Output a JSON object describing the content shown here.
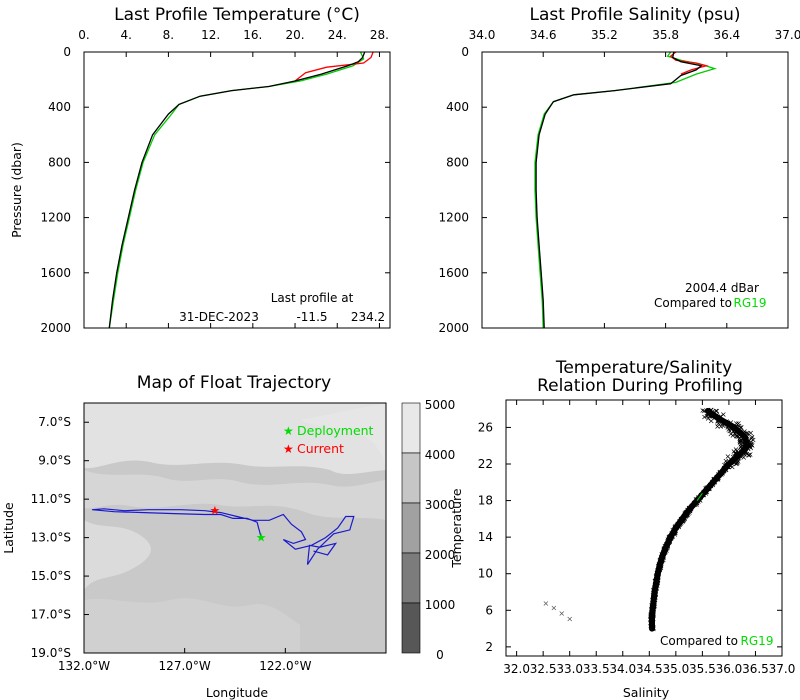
{
  "chart_data": [
    {
      "type": "line",
      "title": "Last Profile Temperature (°C)",
      "ylabel": "Pressure (dbar)",
      "xlim": [
        0,
        29
      ],
      "ylim": [
        2000,
        0
      ],
      "x_ticks": [
        "0.",
        "4.",
        "8.",
        "12.",
        "16.",
        "20.",
        "24.",
        "28."
      ],
      "y_ticks": [
        "0",
        "400",
        "800",
        "1200",
        "1600",
        "2000"
      ],
      "annotation": [
        "Last profile at",
        "31-DEC-2023",
        "-11.5",
        "234.2"
      ],
      "series": [
        {
          "color": "#000000",
          "points": [
            [
              26.6,
              0
            ],
            [
              26.4,
              40
            ],
            [
              26.0,
              70
            ],
            [
              25.0,
              100
            ],
            [
              22.5,
              160
            ],
            [
              20.0,
              210
            ],
            [
              17.5,
              250
            ],
            [
              14.0,
              280
            ],
            [
              11.0,
              320
            ],
            [
              9.0,
              380
            ],
            [
              8.0,
              450
            ],
            [
              6.5,
              600
            ],
            [
              5.5,
              800
            ],
            [
              4.8,
              1000
            ],
            [
              4.2,
              1200
            ],
            [
              3.6,
              1400
            ],
            [
              3.1,
              1600
            ],
            [
              2.7,
              1800
            ],
            [
              2.4,
              2000
            ]
          ]
        },
        {
          "color": "#ff0000",
          "points": [
            [
              27.4,
              0
            ],
            [
              27.2,
              40
            ],
            [
              26.5,
              80
            ],
            [
              23.0,
              110
            ],
            [
              21.0,
              150
            ],
            [
              20.0,
              210
            ]
          ]
        },
        {
          "color": "#00cc00",
          "points": [
            [
              26.2,
              0
            ],
            [
              26.5,
              50
            ],
            [
              25.5,
              100
            ],
            [
              23.0,
              160
            ],
            [
              20.5,
              210
            ],
            [
              17.5,
              250
            ],
            [
              14.0,
              280
            ],
            [
              11.0,
              320
            ],
            [
              9.0,
              380
            ],
            [
              8.3,
              450
            ],
            [
              6.7,
              600
            ],
            [
              5.6,
              800
            ],
            [
              4.9,
              1000
            ],
            [
              4.3,
              1200
            ],
            [
              3.7,
              1400
            ],
            [
              3.2,
              1600
            ],
            [
              2.8,
              1800
            ],
            [
              2.4,
              2000
            ]
          ]
        }
      ]
    },
    {
      "type": "line",
      "title": "Last Profile Salinity (psu)",
      "xlim": [
        34.0,
        37.0
      ],
      "ylim": [
        2000,
        0
      ],
      "x_ticks": [
        "34.0",
        "34.6",
        "35.2",
        "35.8",
        "36.4",
        "37.0"
      ],
      "y_ticks": [
        "0",
        "400",
        "800",
        "1200",
        "1600",
        "2000"
      ],
      "annotation": [
        "2004.4  dBar",
        "Compared to",
        "RG19"
      ],
      "series": [
        {
          "color": "#000000",
          "points": [
            [
              35.88,
              0
            ],
            [
              35.87,
              40
            ],
            [
              35.95,
              70
            ],
            [
              36.15,
              100
            ],
            [
              36.1,
              130
            ],
            [
              35.95,
              170
            ],
            [
              35.85,
              230
            ],
            [
              35.3,
              280
            ],
            [
              34.9,
              310
            ],
            [
              34.7,
              360
            ],
            [
              34.62,
              450
            ],
            [
              34.56,
              600
            ],
            [
              34.53,
              800
            ],
            [
              34.53,
              1000
            ],
            [
              34.54,
              1200
            ],
            [
              34.56,
              1400
            ],
            [
              34.58,
              1600
            ],
            [
              34.6,
              1800
            ],
            [
              34.61,
              2000
            ]
          ]
        },
        {
          "color": "#ff0000",
          "points": [
            [
              35.9,
              0
            ],
            [
              35.85,
              30
            ],
            [
              35.9,
              60
            ],
            [
              36.1,
              80
            ],
            [
              36.2,
              100
            ],
            [
              36.05,
              130
            ],
            [
              35.95,
              160
            ]
          ]
        },
        {
          "color": "#00cc00",
          "points": [
            [
              35.85,
              0
            ],
            [
              35.82,
              30
            ],
            [
              35.95,
              60
            ],
            [
              36.15,
              90
            ],
            [
              36.28,
              120
            ],
            [
              36.1,
              160
            ],
            [
              35.9,
              220
            ],
            [
              35.3,
              280
            ],
            [
              34.9,
              310
            ],
            [
              34.7,
              360
            ],
            [
              34.61,
              450
            ],
            [
              34.55,
              600
            ],
            [
              34.52,
              800
            ],
            [
              34.52,
              1000
            ],
            [
              34.53,
              1200
            ],
            [
              34.55,
              1400
            ],
            [
              34.57,
              1600
            ],
            [
              34.59,
              1800
            ],
            [
              34.6,
              2000
            ]
          ]
        }
      ]
    },
    {
      "type": "line",
      "title": "Map of Float Trajectory",
      "xlabel": "Longitude",
      "ylabel": "Latitude",
      "xlim": [
        -132,
        -117
      ],
      "ylim": [
        -19,
        -6
      ],
      "x_ticks": [
        "132.0°W",
        "127.0°W",
        "122.0°W"
      ],
      "y_ticks": [
        "7.0°S",
        "9.0°S",
        "11.0°S",
        "13.0°S",
        "15.0°S",
        "17.0°S",
        "19.0°S"
      ],
      "legend": [
        "Deployment",
        "Current"
      ],
      "colorbar_ticks": [
        "5000",
        "4000",
        "3000",
        "2000",
        "1000",
        "0"
      ],
      "deployment": [
        -123.2,
        -13.0
      ],
      "current": [
        -125.5,
        -11.6
      ],
      "track": [
        [
          -123.2,
          -13.0
        ],
        [
          -123.4,
          -12.2
        ],
        [
          -123.9,
          -12.0
        ],
        [
          -124.6,
          -12.0
        ],
        [
          -125.2,
          -11.8
        ],
        [
          -126.0,
          -11.8
        ],
        [
          -127.5,
          -11.75
        ],
        [
          -129.0,
          -11.7
        ],
        [
          -130.5,
          -11.65
        ],
        [
          -131.6,
          -11.55
        ],
        [
          -131.0,
          -11.5
        ],
        [
          -130.0,
          -11.6
        ],
        [
          -128.8,
          -11.55
        ],
        [
          -127.2,
          -11.55
        ],
        [
          -126.0,
          -11.6
        ],
        [
          -125.2,
          -11.7
        ],
        [
          -124.4,
          -11.9
        ],
        [
          -123.6,
          -12.1
        ],
        [
          -122.8,
          -12.1
        ],
        [
          -122.1,
          -11.8
        ],
        [
          -121.7,
          -12.3
        ],
        [
          -121.2,
          -12.7
        ],
        [
          -121.0,
          -13.1
        ],
        [
          -121.6,
          -13.3
        ],
        [
          -122.1,
          -13.1
        ],
        [
          -121.5,
          -13.6
        ],
        [
          -120.7,
          -13.4
        ],
        [
          -120.0,
          -13.0
        ],
        [
          -119.4,
          -12.5
        ],
        [
          -119.0,
          -11.9
        ],
        [
          -118.6,
          -11.9
        ],
        [
          -118.8,
          -12.6
        ],
        [
          -119.6,
          -12.8
        ],
        [
          -120.4,
          -13.6
        ],
        [
          -120.9,
          -14.4
        ],
        [
          -120.8,
          -13.4
        ],
        [
          -120.3,
          -13.5
        ],
        [
          -119.5,
          -13.3
        ],
        [
          -119.9,
          -13.9
        ],
        [
          -120.6,
          -13.7
        ]
      ]
    },
    {
      "type": "scatter",
      "title": [
        "Temperature/Salinity",
        "Relation During Profiling"
      ],
      "xlabel": "Salinity",
      "ylabel": "Temperature",
      "xlim": [
        31.8,
        37.0
      ],
      "ylim": [
        1,
        29
      ],
      "x_ticks": [
        "32.0",
        "32.5",
        "33.0",
        "33.5",
        "34.0",
        "34.5",
        "35.0",
        "35.5",
        "36.0",
        "36.5",
        "37.0"
      ],
      "y_ticks": [
        "2",
        "6",
        "10",
        "14",
        "18",
        "22",
        "26"
      ],
      "annotation": [
        "Compared to",
        "RG19"
      ],
      "curve": [
        [
          34.55,
          4.0
        ],
        [
          34.55,
          5.0
        ],
        [
          34.56,
          6.0
        ],
        [
          34.58,
          7.0
        ],
        [
          34.6,
          8.0
        ],
        [
          34.63,
          9.0
        ],
        [
          34.66,
          10.0
        ],
        [
          34.7,
          11.0
        ],
        [
          34.75,
          12.0
        ],
        [
          34.82,
          13.0
        ],
        [
          34.9,
          14.0
        ],
        [
          35.0,
          15.0
        ],
        [
          35.12,
          16.0
        ],
        [
          35.25,
          17.0
        ],
        [
          35.4,
          18.0
        ],
        [
          35.55,
          19.0
        ],
        [
          35.7,
          20.0
        ],
        [
          35.85,
          21.0
        ],
        [
          36.0,
          22.0
        ],
        [
          36.2,
          23.0
        ],
        [
          36.35,
          24.0
        ],
        [
          36.3,
          25.0
        ],
        [
          36.1,
          26.0
        ],
        [
          35.8,
          27.0
        ],
        [
          35.6,
          27.8
        ]
      ],
      "outliers": [
        [
          32.55,
          6.8
        ],
        [
          32.7,
          6.3
        ],
        [
          32.85,
          5.7
        ],
        [
          33.0,
          5.1
        ]
      ]
    }
  ]
}
